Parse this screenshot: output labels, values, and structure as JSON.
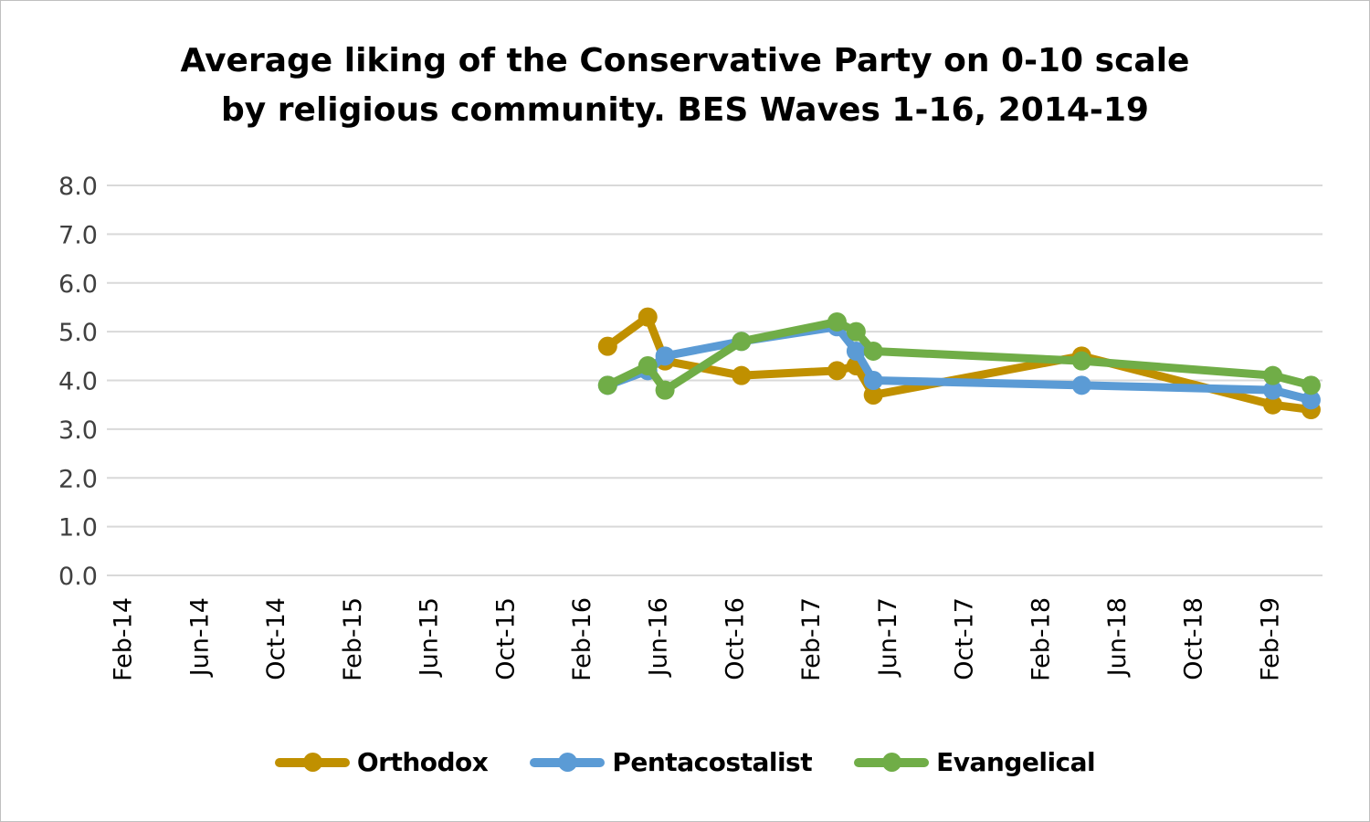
{
  "chart_data": {
    "type": "line",
    "title": "Average liking of the Conservative Party on 0-10 scale by religious community. BES Waves 1-16, 2014-19",
    "title_lines": [
      "Average liking of the Conservative Party on 0-10 scale",
      "by religious community. BES Waves 1-16, 2014-19"
    ],
    "xlabel": "",
    "ylabel": "",
    "x_unit": "months since Feb-2014",
    "xlim": [
      -0.8,
      62.8
    ],
    "ylim": [
      0,
      8
    ],
    "y_ticks": [
      "0.0",
      "1.0",
      "2.0",
      "3.0",
      "4.0",
      "5.0",
      "6.0",
      "7.0",
      "8.0"
    ],
    "x_ticks": [
      {
        "label": "Feb-14",
        "month": 0
      },
      {
        "label": "Jun-14",
        "month": 4
      },
      {
        "label": "Oct-14",
        "month": 8
      },
      {
        "label": "Feb-15",
        "month": 12
      },
      {
        "label": "Jun-15",
        "month": 16
      },
      {
        "label": "Oct-15",
        "month": 20
      },
      {
        "label": "Feb-16",
        "month": 24
      },
      {
        "label": "Jun-16",
        "month": 28
      },
      {
        "label": "Oct-16",
        "month": 32
      },
      {
        "label": "Feb-17",
        "month": 36
      },
      {
        "label": "Jun-17",
        "month": 40
      },
      {
        "label": "Oct-17",
        "month": 44
      },
      {
        "label": "Feb-18",
        "month": 48
      },
      {
        "label": "Jun-18",
        "month": 52
      },
      {
        "label": "Oct-18",
        "month": 56
      },
      {
        "label": "Feb-19",
        "month": 60
      }
    ],
    "grid": true,
    "legend_position": "bottom",
    "series": [
      {
        "name": "Orthodox",
        "color": "#c09000",
        "x": [
          25.4,
          27.5,
          28.4,
          32.4,
          37.4,
          38.4,
          39.3,
          50.2,
          60.2,
          62.2
        ],
        "values": [
          4.7,
          5.3,
          4.4,
          4.1,
          4.2,
          4.3,
          3.7,
          4.5,
          3.5,
          3.4
        ]
      },
      {
        "name": "Pentacostalist",
        "color": "#5b9bd5",
        "x": [
          25.4,
          27.5,
          28.4,
          32.4,
          37.4,
          38.4,
          39.3,
          50.2,
          60.2,
          62.2
        ],
        "values": [
          3.9,
          4.2,
          4.5,
          4.8,
          5.1,
          4.6,
          4.0,
          3.9,
          3.8,
          3.6
        ]
      },
      {
        "name": "Evangelical",
        "color": "#70ad47",
        "x": [
          25.4,
          27.5,
          28.4,
          32.4,
          37.4,
          38.4,
          39.3,
          50.2,
          60.2,
          62.2
        ],
        "values": [
          3.9,
          4.3,
          3.8,
          4.8,
          5.2,
          5.0,
          4.6,
          4.4,
          4.1,
          3.9
        ]
      }
    ]
  }
}
